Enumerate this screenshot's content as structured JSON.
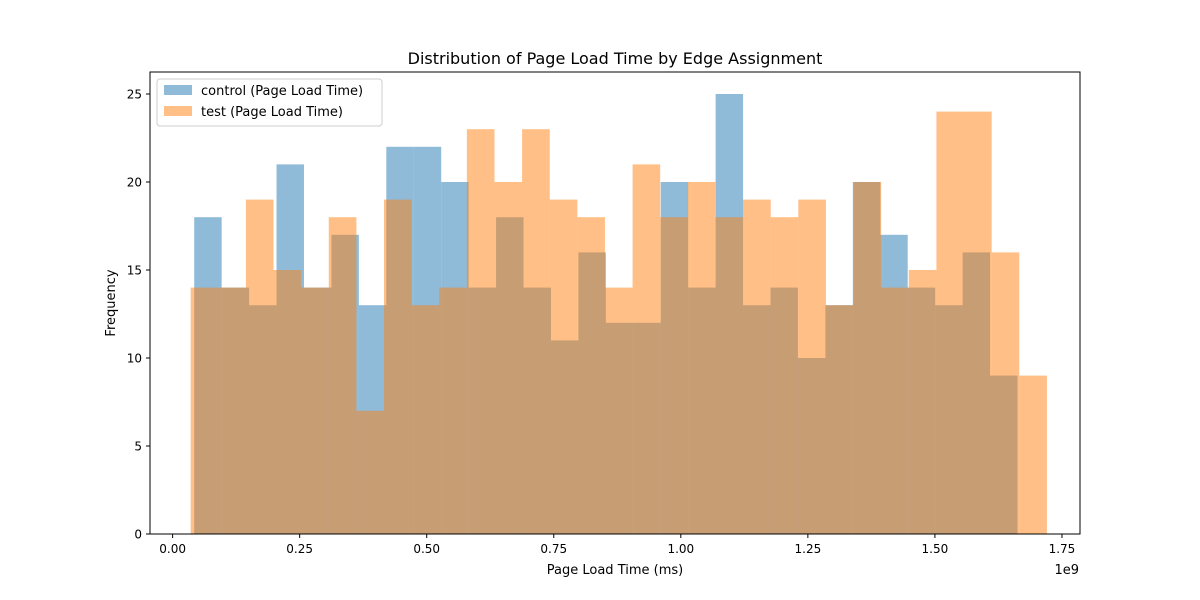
{
  "chart_data": {
    "type": "bar",
    "title": "Distribution of Page Load Time by Edge Assignment",
    "xlabel": "Page Load Time (ms)",
    "ylabel": "Frequency",
    "x_offset_label": "1e9",
    "xlim": [
      -0.0445,
      1.7855
    ],
    "ylim": [
      0,
      26.25
    ],
    "xticks": [
      0.0,
      0.25,
      0.5,
      0.75,
      1.0,
      1.25,
      1.5,
      1.75
    ],
    "xtick_labels": [
      "0.00",
      "0.25",
      "0.50",
      "0.75",
      "1.00",
      "1.25",
      "1.50",
      "1.75"
    ],
    "yticks": [
      0,
      5,
      10,
      15,
      20,
      25
    ],
    "ytick_labels": [
      "0",
      "5",
      "10",
      "15",
      "20",
      "25"
    ],
    "legend_position": "upper-left",
    "grid": false,
    "series": [
      {
        "name": "control (Page Load Time)",
        "color": "#1f77b4",
        "opacity": 0.5,
        "bin_start": 0.0425,
        "bin_width": 0.054,
        "values": [
          18,
          14,
          13,
          21,
          14,
          17,
          13,
          22,
          22,
          20,
          14,
          18,
          14,
          11,
          16,
          12,
          12,
          20,
          14,
          25,
          13,
          14,
          10,
          13,
          20,
          17,
          14,
          13,
          16,
          9
        ]
      },
      {
        "name": "test (Page Load Time)",
        "color": "#ff7f0e",
        "opacity": 0.5,
        "bin_start": 0.0355,
        "bin_width": 0.05435,
        "values": [
          14,
          14,
          19,
          15,
          14,
          18,
          7,
          19,
          13,
          14,
          23,
          20,
          23,
          19,
          18,
          14,
          21,
          18,
          20,
          18,
          19,
          18,
          19,
          13,
          20,
          14,
          15,
          24,
          24,
          16,
          9
        ]
      }
    ]
  }
}
